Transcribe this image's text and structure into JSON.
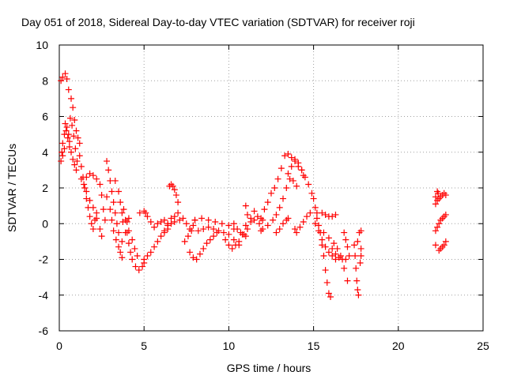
{
  "chart_data": {
    "type": "scatter",
    "title": "Day 051 of 2018, Sidereal Day-to-day VTEC variation (SDTVAR) for receiver roji",
    "xlabel": "GPS time / hours",
    "ylabel": "SDTVAR / TECUs",
    "xlim": [
      0,
      25
    ],
    "ylim": [
      -6,
      10
    ],
    "xticks": [
      0,
      5,
      10,
      15,
      20,
      25
    ],
    "yticks": [
      -6,
      -4,
      -2,
      0,
      2,
      4,
      6,
      8,
      10
    ],
    "grid": true,
    "marker": "plus",
    "color": "#ff0000",
    "series": [
      {
        "values": [
          [
            0.1,
            8.0
          ],
          [
            0.2,
            8.2
          ],
          [
            0.35,
            8.4
          ],
          [
            0.45,
            8.1
          ],
          [
            0.55,
            7.5
          ],
          [
            0.7,
            7.0
          ],
          [
            0.8,
            6.5
          ],
          [
            0.9,
            5.8
          ],
          [
            1.0,
            5.2
          ],
          [
            1.1,
            4.8
          ],
          [
            1.2,
            4.5
          ],
          [
            0.1,
            3.5
          ],
          [
            0.15,
            4.0
          ],
          [
            0.2,
            4.5
          ],
          [
            0.3,
            5.0
          ],
          [
            0.35,
            5.6
          ],
          [
            0.45,
            5.4
          ],
          [
            0.55,
            5.0
          ],
          [
            0.6,
            4.6
          ],
          [
            0.7,
            4.0
          ],
          [
            0.8,
            3.6
          ],
          [
            0.9,
            3.3
          ],
          [
            1.0,
            3.0
          ],
          [
            0.2,
            3.8
          ],
          [
            0.3,
            4.2
          ],
          [
            0.4,
            5.2
          ],
          [
            0.5,
            4.8
          ],
          [
            0.6,
            4.3
          ],
          [
            0.65,
            5.9
          ],
          [
            0.75,
            5.5
          ],
          [
            0.85,
            4.9
          ],
          [
            0.95,
            4.2
          ],
          [
            1.05,
            3.5
          ],
          [
            1.2,
            3.8
          ],
          [
            1.3,
            3.2
          ],
          [
            1.4,
            2.6
          ],
          [
            1.5,
            2.0
          ],
          [
            1.6,
            1.4
          ],
          [
            1.7,
            0.9
          ],
          [
            1.8,
            0.4
          ],
          [
            1.9,
            0.0
          ],
          [
            2.0,
            -0.3
          ],
          [
            2.1,
            0.2
          ],
          [
            2.2,
            0.6
          ],
          [
            1.3,
            2.5
          ],
          [
            1.45,
            2.2
          ],
          [
            1.6,
            2.6
          ],
          [
            1.8,
            2.8
          ],
          [
            2.0,
            2.7
          ],
          [
            2.2,
            2.5
          ],
          [
            2.4,
            2.2
          ],
          [
            2.5,
            1.6
          ],
          [
            2.6,
            0.8
          ],
          [
            2.7,
            0.2
          ],
          [
            1.6,
            1.8
          ],
          [
            1.8,
            1.3
          ],
          [
            2.0,
            0.9
          ],
          [
            2.2,
            0.3
          ],
          [
            2.4,
            -0.3
          ],
          [
            2.5,
            -0.7
          ],
          [
            2.8,
            3.5
          ],
          [
            2.9,
            3.0
          ],
          [
            3.0,
            2.4
          ],
          [
            3.1,
            1.8
          ],
          [
            3.2,
            1.2
          ],
          [
            3.3,
            0.6
          ],
          [
            3.4,
            0.0
          ],
          [
            3.5,
            -0.5
          ],
          [
            2.8,
            1.5
          ],
          [
            3.0,
            0.8
          ],
          [
            3.1,
            0.2
          ],
          [
            3.2,
            -0.4
          ],
          [
            3.35,
            -0.9
          ],
          [
            3.5,
            -1.3
          ],
          [
            3.6,
            -1.6
          ],
          [
            3.7,
            -1.9
          ],
          [
            3.3,
            2.4
          ],
          [
            3.5,
            1.8
          ],
          [
            3.6,
            1.2
          ],
          [
            3.7,
            0.6
          ],
          [
            3.75,
            0.1
          ],
          [
            3.8,
            0.8
          ],
          [
            3.9,
            0.2
          ],
          [
            4.0,
            -0.5
          ],
          [
            4.1,
            -1.1
          ],
          [
            4.2,
            -1.6
          ],
          [
            4.3,
            -2.0
          ],
          [
            4.5,
            -2.4
          ],
          [
            4.7,
            -2.6
          ],
          [
            4.9,
            -2.4
          ],
          [
            5.0,
            -2.2
          ],
          [
            3.7,
            -1.0
          ],
          [
            3.9,
            -0.5
          ],
          [
            4.0,
            0.1
          ],
          [
            4.1,
            0.3
          ],
          [
            4.1,
            -0.4
          ],
          [
            4.3,
            -0.9
          ],
          [
            4.45,
            -1.4
          ],
          [
            4.6,
            -1.8
          ],
          [
            4.75,
            0.6
          ],
          [
            5.0,
            0.7
          ],
          [
            5.1,
            0.6
          ],
          [
            5.0,
            -2.0
          ],
          [
            5.2,
            -1.8
          ],
          [
            5.4,
            -1.6
          ],
          [
            5.6,
            -1.3
          ],
          [
            5.8,
            -1.0
          ],
          [
            6.0,
            -0.7
          ],
          [
            6.2,
            -0.4
          ],
          [
            6.4,
            -0.1
          ],
          [
            5.2,
            0.4
          ],
          [
            5.4,
            0.1
          ],
          [
            5.6,
            -0.2
          ],
          [
            5.8,
            0.0
          ],
          [
            6.0,
            0.1
          ],
          [
            6.2,
            0.2
          ],
          [
            6.4,
            0.0
          ],
          [
            6.6,
            0.3
          ],
          [
            6.8,
            0.4
          ],
          [
            7.0,
            0.6
          ],
          [
            7.1,
            0.2
          ],
          [
            6.5,
            2.1
          ],
          [
            6.6,
            2.2
          ],
          [
            6.7,
            2.1
          ],
          [
            6.8,
            1.9
          ],
          [
            6.9,
            1.6
          ],
          [
            7.0,
            1.2
          ],
          [
            6.2,
            -0.5
          ],
          [
            6.4,
            -0.3
          ],
          [
            6.6,
            0.0
          ],
          [
            6.8,
            0.1
          ],
          [
            7.3,
            0.3
          ],
          [
            7.5,
            0.0
          ],
          [
            7.7,
            -0.3
          ],
          [
            7.4,
            -1.0
          ],
          [
            7.6,
            -0.7
          ],
          [
            7.8,
            -0.4
          ],
          [
            7.9,
            -0.1
          ],
          [
            8.0,
            0.2
          ],
          [
            7.7,
            -1.6
          ],
          [
            7.9,
            -1.9
          ],
          [
            8.1,
            -2.0
          ],
          [
            8.3,
            -1.7
          ],
          [
            8.5,
            -1.4
          ],
          [
            8.7,
            -1.1
          ],
          [
            8.9,
            -0.9
          ],
          [
            9.1,
            -0.7
          ],
          [
            9.3,
            -0.5
          ],
          [
            8.2,
            -0.4
          ],
          [
            8.5,
            -0.3
          ],
          [
            8.8,
            -0.2
          ],
          [
            9.1,
            -0.3
          ],
          [
            9.4,
            -0.4
          ],
          [
            9.7,
            -0.5
          ],
          [
            10.0,
            -0.6
          ],
          [
            10.3,
            -0.9
          ],
          [
            10.6,
            -1.2
          ],
          [
            8.0,
            0.2
          ],
          [
            8.4,
            0.3
          ],
          [
            8.8,
            0.2
          ],
          [
            9.2,
            0.1
          ],
          [
            9.6,
            0.0
          ],
          [
            10.0,
            -0.1
          ],
          [
            10.3,
            -0.3
          ],
          [
            9.8,
            -0.9
          ],
          [
            10.0,
            -1.2
          ],
          [
            10.2,
            -1.4
          ],
          [
            10.4,
            -1.2
          ],
          [
            10.6,
            -1.0
          ],
          [
            10.8,
            -0.6
          ],
          [
            11.0,
            -0.1
          ],
          [
            10.3,
            0.0
          ],
          [
            10.5,
            -0.3
          ],
          [
            10.7,
            -0.5
          ],
          [
            10.9,
            -0.6
          ],
          [
            11.0,
            -0.7
          ],
          [
            11.0,
            1.0
          ],
          [
            11.1,
            0.5
          ],
          [
            11.3,
            0.3
          ],
          [
            11.5,
            0.7
          ],
          [
            11.7,
            0.4
          ],
          [
            11.8,
            0.0
          ],
          [
            11.9,
            -0.4
          ],
          [
            12.0,
            0.2
          ],
          [
            11.1,
            -0.3
          ],
          [
            11.3,
            0.1
          ],
          [
            11.5,
            0.2
          ],
          [
            11.9,
            0.3
          ],
          [
            12.1,
            0.8
          ],
          [
            12.3,
            1.2
          ],
          [
            12.5,
            1.7
          ],
          [
            12.7,
            2.0
          ],
          [
            12.9,
            2.5
          ],
          [
            13.1,
            3.1
          ],
          [
            13.3,
            3.8
          ],
          [
            13.5,
            3.9
          ],
          [
            13.7,
            3.7
          ],
          [
            13.9,
            3.5
          ],
          [
            14.1,
            3.2
          ],
          [
            14.3,
            3.0
          ],
          [
            14.4,
            2.7
          ],
          [
            12.0,
            -0.3
          ],
          [
            12.3,
            -0.1
          ],
          [
            12.6,
            0.2
          ],
          [
            12.8,
            0.5
          ],
          [
            13.0,
            0.9
          ],
          [
            13.2,
            1.4
          ],
          [
            13.4,
            2.0
          ],
          [
            13.6,
            2.5
          ],
          [
            13.8,
            2.4
          ],
          [
            14.0,
            2.1
          ],
          [
            12.8,
            -0.5
          ],
          [
            13.0,
            -0.3
          ],
          [
            13.2,
            0.0
          ],
          [
            13.4,
            0.2
          ],
          [
            13.5,
            0.3
          ],
          [
            13.5,
            2.8
          ],
          [
            13.7,
            3.2
          ],
          [
            13.9,
            3.6
          ],
          [
            14.1,
            3.4
          ],
          [
            14.3,
            3.0
          ],
          [
            14.5,
            2.6
          ],
          [
            14.7,
            2.2
          ],
          [
            14.9,
            1.7
          ],
          [
            15.0,
            1.4
          ],
          [
            15.2,
            0.6
          ],
          [
            13.9,
            -0.3
          ],
          [
            14.0,
            -0.5
          ],
          [
            14.2,
            -0.2
          ],
          [
            14.4,
            0.1
          ],
          [
            14.6,
            0.4
          ],
          [
            14.8,
            0.6
          ],
          [
            15.1,
            0.9
          ],
          [
            15.2,
            0.3
          ],
          [
            15.4,
            -0.5
          ],
          [
            15.5,
            -1.2
          ],
          [
            15.6,
            -1.8
          ],
          [
            15.7,
            -2.6
          ],
          [
            15.8,
            -3.3
          ],
          [
            15.9,
            -3.9
          ],
          [
            16.0,
            -4.1
          ],
          [
            15.1,
            0.0
          ],
          [
            15.3,
            -0.4
          ],
          [
            15.5,
            -0.9
          ],
          [
            15.7,
            -1.3
          ],
          [
            15.9,
            -1.6
          ],
          [
            16.1,
            -1.8
          ],
          [
            16.3,
            -2.0
          ],
          [
            15.3,
            -0.1
          ],
          [
            15.6,
            -0.5
          ],
          [
            15.9,
            -0.8
          ],
          [
            16.2,
            -1.1
          ],
          [
            16.4,
            -1.4
          ],
          [
            16.6,
            -1.8
          ],
          [
            16.8,
            -2.5
          ],
          [
            17.0,
            -3.2
          ],
          [
            15.5,
            0.6
          ],
          [
            15.7,
            0.5
          ],
          [
            15.9,
            0.4
          ],
          [
            16.1,
            0.4
          ],
          [
            16.3,
            0.5
          ],
          [
            16.1,
            -1.4
          ],
          [
            16.3,
            -1.7
          ],
          [
            16.5,
            -1.9
          ],
          [
            16.7,
            -2.0
          ],
          [
            16.9,
            -2.0
          ],
          [
            16.8,
            -0.5
          ],
          [
            16.9,
            -0.9
          ],
          [
            17.0,
            -1.3
          ],
          [
            17.1,
            -1.8
          ],
          [
            17.4,
            -1.2
          ],
          [
            17.45,
            -1.8
          ],
          [
            17.5,
            -2.5
          ],
          [
            17.55,
            -3.2
          ],
          [
            17.6,
            -3.7
          ],
          [
            17.65,
            -4.0
          ],
          [
            17.7,
            -0.5
          ],
          [
            17.8,
            -0.4
          ],
          [
            17.6,
            -1.0
          ],
          [
            17.8,
            -1.4
          ],
          [
            17.8,
            -1.8
          ],
          [
            17.75,
            -2.2
          ],
          [
            22.2,
            1.1
          ],
          [
            22.3,
            1.3
          ],
          [
            22.4,
            1.4
          ],
          [
            22.5,
            1.5
          ],
          [
            22.6,
            1.6
          ],
          [
            22.7,
            1.7
          ],
          [
            22.8,
            1.6
          ],
          [
            22.2,
            1.5
          ],
          [
            22.3,
            1.8
          ],
          [
            22.35,
            1.7
          ],
          [
            22.2,
            -0.4
          ],
          [
            22.3,
            -0.2
          ],
          [
            22.4,
            0.0
          ],
          [
            22.5,
            0.2
          ],
          [
            22.6,
            0.3
          ],
          [
            22.7,
            0.4
          ],
          [
            22.8,
            0.5
          ],
          [
            22.2,
            -1.2
          ],
          [
            22.4,
            -1.5
          ],
          [
            22.5,
            -1.4
          ],
          [
            22.6,
            -1.3
          ],
          [
            22.7,
            -1.2
          ],
          [
            22.8,
            -1.0
          ]
        ]
      }
    ]
  }
}
